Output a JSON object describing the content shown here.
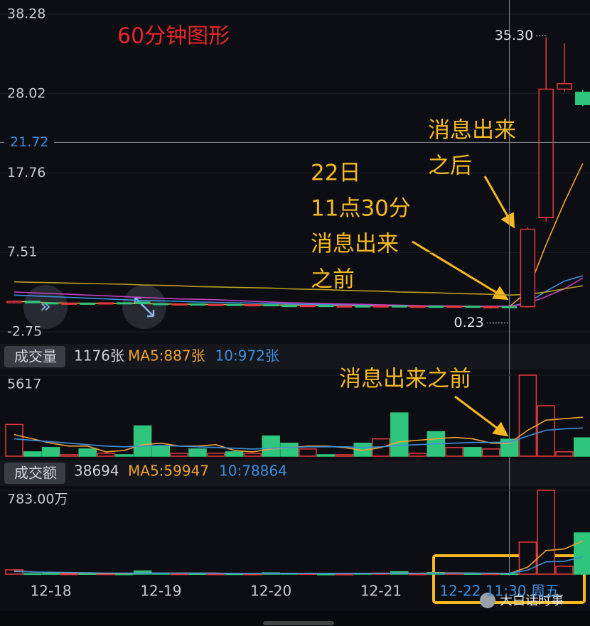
{
  "chart_data": [
    {
      "type": "candlestick",
      "title": "60分钟图形",
      "categories": [
        null,
        null,
        "12-18",
        null,
        null,
        null,
        null,
        null,
        "12-19",
        null,
        null,
        null,
        null,
        null,
        "12-20",
        null,
        null,
        null,
        null,
        null,
        "12-21",
        null,
        null,
        null,
        null,
        null,
        null,
        "12-22 11:30 周五",
        null,
        null,
        null,
        null
      ],
      "open": [
        1.0,
        1.2,
        1.0,
        0.9,
        0.95,
        0.85,
        1.0,
        1.1,
        0.9,
        0.8,
        0.85,
        0.75,
        0.8,
        0.7,
        0.75,
        0.65,
        0.6,
        0.65,
        0.6,
        0.6,
        0.55,
        0.6,
        0.5,
        0.55,
        0.5,
        0.55,
        0.5,
        0.5,
        0.5,
        12.0,
        28.6,
        28.2
      ],
      "high": [
        1.3,
        1.25,
        1.05,
        1.0,
        1.0,
        1.05,
        1.05,
        1.15,
        0.95,
        0.9,
        0.9,
        0.85,
        0.85,
        0.8,
        0.8,
        0.7,
        0.7,
        0.7,
        0.65,
        0.65,
        0.65,
        0.65,
        0.6,
        0.6,
        0.6,
        0.6,
        0.55,
        0.55,
        10.8,
        35.3,
        34.5,
        28.5
      ],
      "low": [
        0.9,
        0.95,
        0.85,
        0.85,
        0.8,
        0.8,
        0.85,
        0.85,
        0.75,
        0.75,
        0.7,
        0.7,
        0.65,
        0.65,
        0.6,
        0.55,
        0.55,
        0.55,
        0.55,
        0.5,
        0.5,
        0.45,
        0.45,
        0.45,
        0.45,
        0.4,
        0.23,
        0.4,
        0.4,
        11.5,
        28.3,
        26.4
      ],
      "close": [
        1.2,
        1.0,
        0.9,
        0.95,
        0.85,
        1.0,
        0.9,
        0.9,
        0.8,
        0.85,
        0.75,
        0.8,
        0.7,
        0.75,
        0.65,
        0.6,
        0.65,
        0.6,
        0.6,
        0.55,
        0.6,
        0.5,
        0.55,
        0.5,
        0.55,
        0.5,
        0.5,
        0.45,
        10.5,
        28.6,
        29.3,
        26.6
      ],
      "up_color": "#e8383d",
      "down_color": "#2fc57c",
      "ylim": [
        -2.75,
        38.28
      ],
      "yticks": [
        38.28,
        28.02,
        17.76,
        7.51,
        -2.75
      ],
      "grid": true,
      "crosshair": {
        "y": 21.72
      },
      "max_label": {
        "value": 35.3,
        "label": "35.30"
      },
      "min_label": 0.23,
      "lines": [
        {
          "color": "#f0a030",
          "values": [
            1.2,
            1.1,
            1.0,
            0.95,
            0.95,
            0.9,
            0.95,
            0.9,
            0.85,
            0.85,
            0.8,
            0.8,
            0.75,
            0.75,
            0.7,
            0.7,
            0.7,
            0.65,
            0.65,
            0.6,
            0.6,
            0.6,
            0.55,
            0.55,
            0.55,
            0.5,
            0.5,
            0.5,
            2.5,
            8.5,
            14.0,
            19.0
          ]
        },
        {
          "color": "#3d8fe0",
          "values": [
            2.0,
            1.9,
            1.8,
            1.7,
            1.6,
            1.5,
            1.4,
            1.3,
            1.25,
            1.2,
            1.1,
            1.05,
            1.0,
            0.95,
            0.9,
            0.85,
            0.8,
            0.8,
            0.75,
            0.7,
            0.7,
            0.65,
            0.6,
            0.6,
            0.6,
            0.55,
            0.55,
            0.55,
            1.0,
            2.5,
            3.8,
            4.5
          ]
        },
        {
          "color": "#c040c0",
          "values": [
            2.4,
            2.3,
            2.2,
            2.1,
            2.0,
            1.9,
            1.8,
            1.7,
            1.6,
            1.5,
            1.45,
            1.4,
            1.3,
            1.2,
            1.1,
            1.0,
            0.95,
            0.9,
            0.85,
            0.8,
            0.75,
            0.7,
            0.65,
            0.6,
            0.6,
            0.55,
            0.55,
            0.55,
            0.9,
            1.8,
            2.8,
            4.2
          ]
        },
        {
          "color": "#b8a020",
          "values": [
            3.7,
            3.65,
            3.6,
            3.55,
            3.5,
            3.45,
            3.4,
            3.3,
            3.25,
            3.2,
            3.1,
            3.05,
            3.0,
            2.95,
            2.9,
            2.8,
            2.75,
            2.7,
            2.6,
            2.55,
            2.5,
            2.4,
            2.35,
            2.3,
            2.2,
            2.15,
            2.1,
            2.0,
            2.1,
            2.4,
            2.8,
            3.2
          ]
        }
      ],
      "annotations": [
        {
          "lines": [
            "22日",
            "11点30分",
            "消息出来",
            "之前"
          ]
        },
        {
          "lines": [
            "消息出来",
            "之后"
          ]
        }
      ]
    },
    {
      "type": "bar",
      "title": "成交量",
      "values": [
        2200,
        300,
        600,
        100,
        500,
        200,
        100,
        2100,
        700,
        200,
        500,
        200,
        300,
        200,
        1400,
        900,
        500,
        100,
        100,
        900,
        1200,
        3000,
        200,
        1700,
        600,
        600,
        500,
        1176,
        5617,
        3500,
        300,
        1270
      ],
      "readout": {
        "value": 1176,
        "label": "1176张"
      },
      "ylim": [
        0,
        5617
      ],
      "yticks": [
        5617
      ],
      "lines": [
        {
          "color": "#f0a030",
          "readout": {
            "value": 887,
            "label": "MA5:887张"
          },
          "values": [
            1500,
            1200,
            900,
            700,
            700,
            300,
            400,
            800,
            900,
            700,
            700,
            800,
            400,
            300,
            500,
            600,
            700,
            700,
            600,
            400,
            600,
            1000,
            1100,
            1200,
            1300,
            1200,
            900,
            887,
            1800,
            2500,
            2600,
            2700
          ]
        },
        {
          "color": "#3d8fe0",
          "readout": {
            "value": 972,
            "label": "10:972张"
          },
          "values": [
            1200,
            1100,
            1000,
            900,
            800,
            700,
            650,
            700,
            750,
            700,
            650,
            600,
            550,
            500,
            550,
            600,
            650,
            650,
            650,
            600,
            650,
            750,
            800,
            850,
            900,
            950,
            950,
            972,
            1400,
            1800,
            1900,
            1950
          ]
        }
      ],
      "annotations": [
        {
          "lines": [
            "消息出来之前"
          ]
        }
      ]
    },
    {
      "type": "bar",
      "title": "成交额",
      "values": [
        400000,
        40000,
        60000,
        20000,
        50000,
        30000,
        20000,
        300000,
        80000,
        30000,
        50000,
        20000,
        30000,
        20000,
        120000,
        80000,
        50000,
        10000,
        10000,
        80000,
        100000,
        220000,
        20000,
        150000,
        60000,
        50000,
        40000,
        38694,
        2990000,
        7830000,
        730000,
        3850000
      ],
      "readout": {
        "value": 38694,
        "label": "38694"
      },
      "ylim": [
        0,
        7830000
      ],
      "yticks": [
        {
          "value": 7830000,
          "label": "783.00万"
        }
      ],
      "lines": [
        {
          "color": "#f0a030",
          "readout": {
            "value": 59947,
            "label": "MA5:59947"
          },
          "values": [
            300000,
            200000,
            150000,
            100000,
            100000,
            50000,
            60000,
            90000,
            100000,
            90000,
            100000,
            90000,
            50000,
            40000,
            60000,
            60000,
            60000,
            60000,
            50000,
            50000,
            60000,
            90000,
            80000,
            110000,
            110000,
            100000,
            70000,
            59947,
            650000,
            2200000,
            2350000,
            3100000
          ]
        },
        {
          "color": "#3d8fe0",
          "readout": {
            "value": 78864,
            "label": "10:78864"
          },
          "values": [
            250000,
            200000,
            180000,
            150000,
            130000,
            100000,
            90000,
            90000,
            90000,
            90000,
            90000,
            80000,
            70000,
            60000,
            60000,
            60000,
            60000,
            60000,
            60000,
            60000,
            60000,
            70000,
            70000,
            80000,
            85000,
            90000,
            85000,
            78864,
            380000,
            1150000,
            1200000,
            1600000
          ]
        }
      ]
    }
  ],
  "watermark": "大白话时事"
}
